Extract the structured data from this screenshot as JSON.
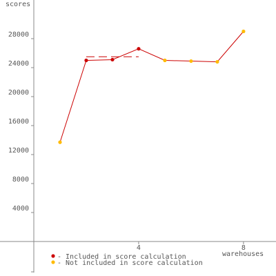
{
  "chart_data": {
    "type": "line",
    "y_label": "scores",
    "x_label": "warehouses",
    "x": [
      1,
      2,
      3,
      4,
      5,
      6,
      7,
      8
    ],
    "series": [
      {
        "color": "#cc0000",
        "values": [
          13700,
          25000,
          25100,
          26600,
          25000,
          24900,
          24800,
          29000
        ],
        "point_colors": [
          "#ffbb00",
          "#cc0000",
          "#cc0000",
          "#cc0000",
          "#ffbb00",
          "#ffbb00",
          "#ffbb00",
          "#ffbb00"
        ]
      }
    ],
    "reference_line": {
      "value": 25500,
      "x": [
        2,
        4
      ],
      "color": "#cc0000"
    },
    "legend": [
      {
        "name": "- Included in score calculation",
        "color": "#cc0000"
      },
      {
        "name": "- Not included in score calculation",
        "color": "#ffbb00"
      }
    ],
    "xlim": [
      -1.29,
      9.24
    ],
    "ylim": [
      -4286,
      33333
    ],
    "xticks": [
      4,
      8
    ],
    "yticks": [
      4000,
      8000,
      12000,
      16000,
      20000,
      24000,
      28000
    ]
  }
}
